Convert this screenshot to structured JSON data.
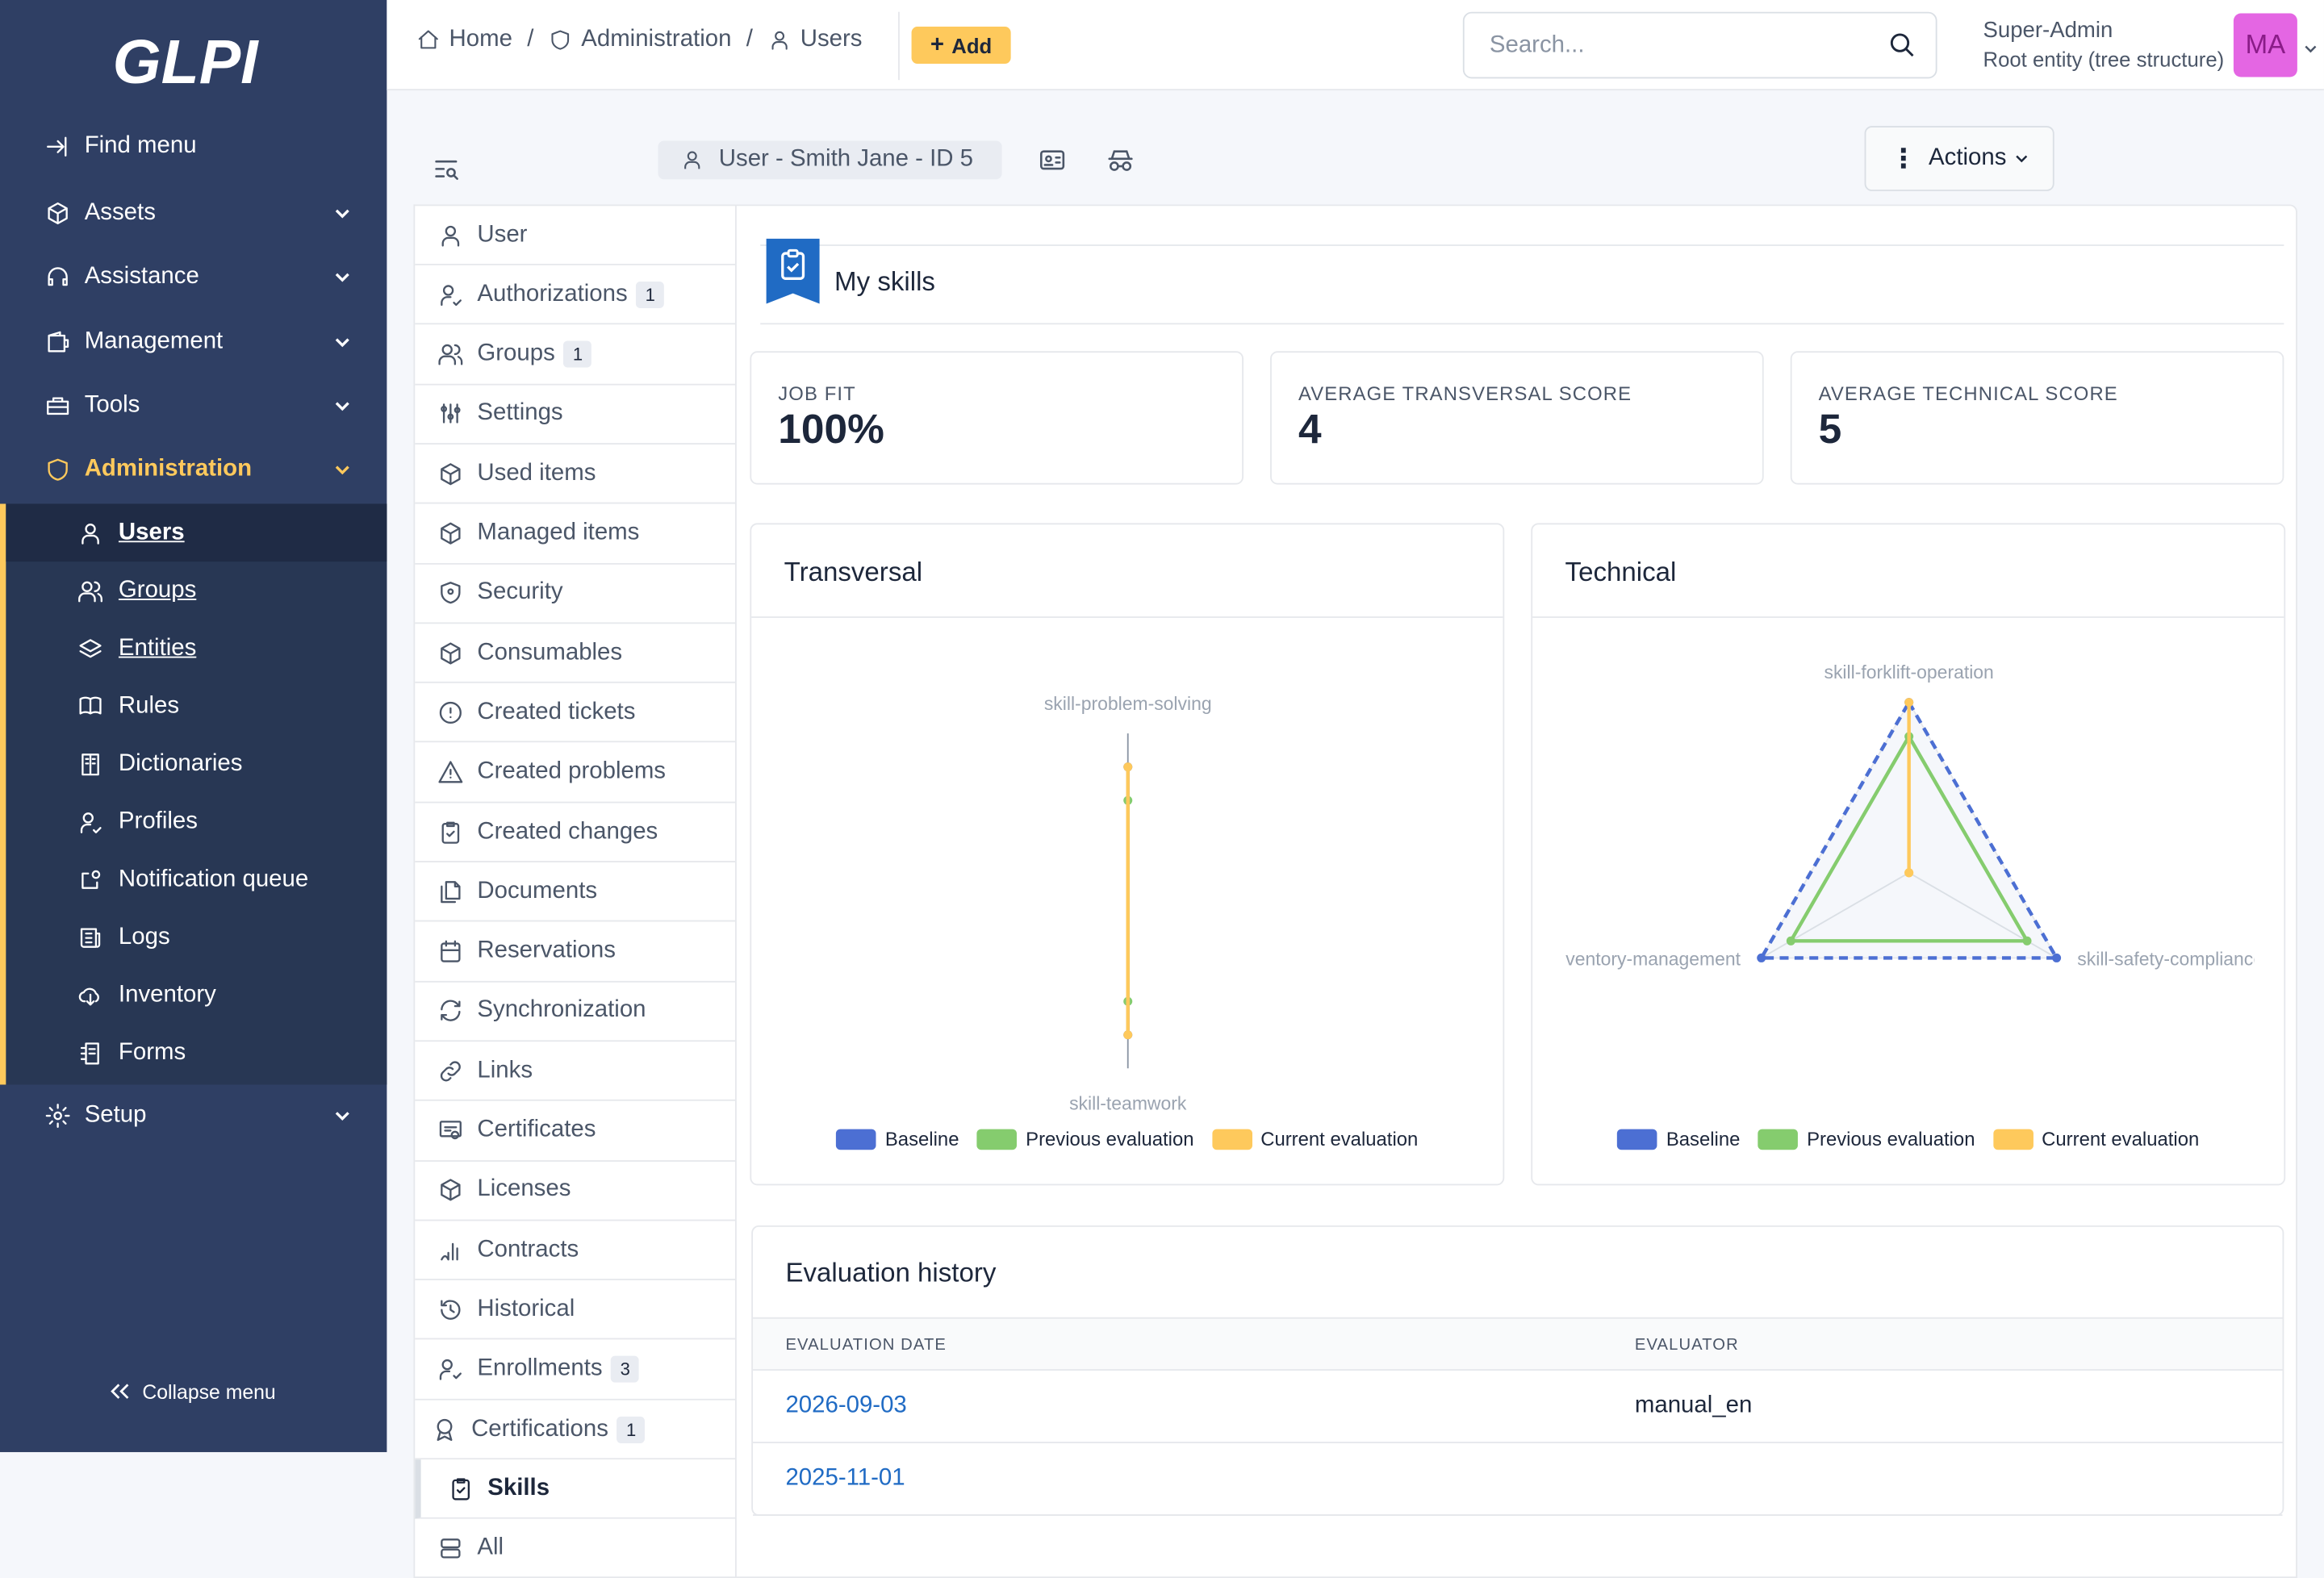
{
  "sidebar": {
    "logo": "GLPI",
    "find_menu": "Find menu",
    "items": [
      {
        "label": "Assets"
      },
      {
        "label": "Assistance"
      },
      {
        "label": "Management"
      },
      {
        "label": "Tools"
      },
      {
        "label": "Administration"
      },
      {
        "label": "Setup"
      }
    ],
    "admin_sub": [
      {
        "label": "Users"
      },
      {
        "label": "Groups"
      },
      {
        "label": "Entities"
      },
      {
        "label": "Rules"
      },
      {
        "label": "Dictionaries"
      },
      {
        "label": "Profiles"
      },
      {
        "label": "Notification queue"
      },
      {
        "label": "Logs"
      },
      {
        "label": "Inventory"
      },
      {
        "label": "Forms"
      }
    ],
    "collapse": "Collapse menu"
  },
  "header": {
    "breadcrumbs": [
      "Home",
      "Administration",
      "Users"
    ],
    "add": "Add",
    "search_placeholder": "Search...",
    "user_name": "Super-Admin",
    "user_entity": "Root entity (tree structure)",
    "avatar": "MA"
  },
  "toolbar": {
    "item_title": "User -  Smith Jane - ID 5",
    "actions": "Actions"
  },
  "tabs": [
    {
      "label": "User",
      "badge": ""
    },
    {
      "label": "Authorizations",
      "badge": "1"
    },
    {
      "label": "Groups",
      "badge": "1"
    },
    {
      "label": "Settings",
      "badge": ""
    },
    {
      "label": "Used items",
      "badge": ""
    },
    {
      "label": "Managed items",
      "badge": ""
    },
    {
      "label": "Security",
      "badge": ""
    },
    {
      "label": "Consumables",
      "badge": ""
    },
    {
      "label": "Created tickets",
      "badge": ""
    },
    {
      "label": "Created problems",
      "badge": ""
    },
    {
      "label": "Created changes",
      "badge": ""
    },
    {
      "label": "Documents",
      "badge": ""
    },
    {
      "label": "Reservations",
      "badge": ""
    },
    {
      "label": "Synchronization",
      "badge": ""
    },
    {
      "label": "Links",
      "badge": ""
    },
    {
      "label": "Certificates",
      "badge": ""
    },
    {
      "label": "Licenses",
      "badge": ""
    },
    {
      "label": "Contracts",
      "badge": ""
    },
    {
      "label": "Historical",
      "badge": ""
    },
    {
      "label": "Enrollments",
      "badge": "3"
    },
    {
      "label": "Certifications",
      "badge": "1"
    },
    {
      "label": "Skills",
      "badge": ""
    },
    {
      "label": "All",
      "badge": ""
    }
  ],
  "skills": {
    "title": "My skills",
    "stats": [
      {
        "label": "Job fit",
        "value": "100%"
      },
      {
        "label": "Average transversal score",
        "value": "4"
      },
      {
        "label": "Average technical score",
        "value": "5"
      }
    ]
  },
  "legend": [
    "Baseline",
    "Previous evaluation",
    "Current evaluation"
  ],
  "colors": {
    "baseline": "#4c6fd3",
    "previous": "#85cc6e",
    "current": "#fec95c",
    "accent": "#fec95c",
    "sidebar": "#2f3f64"
  },
  "chart_data": [
    {
      "type": "radar",
      "title": "Transversal",
      "axes": [
        "skill-problem-solving",
        "skill-teamwork"
      ],
      "scale_max": 5,
      "series": [
        {
          "name": "Baseline",
          "values": [
            4,
            4
          ]
        },
        {
          "name": "Previous evaluation",
          "values": [
            3,
            3
          ]
        },
        {
          "name": "Current evaluation",
          "values": [
            4,
            4
          ]
        }
      ]
    },
    {
      "type": "radar",
      "title": "Technical",
      "axes": [
        "skill-forklift-operation",
        "skill-safety-compliance",
        "skill-inventory-management"
      ],
      "scale_max": 5,
      "series": [
        {
          "name": "Baseline",
          "values": [
            5,
            5,
            5
          ]
        },
        {
          "name": "Previous evaluation",
          "values": [
            4,
            4,
            4
          ]
        },
        {
          "name": "Current evaluation",
          "values": [
            5,
            0,
            0
          ]
        }
      ]
    }
  ],
  "history": {
    "title": "Evaluation history",
    "columns": [
      "Evaluation date",
      "Evaluator"
    ],
    "rows": [
      {
        "date": "2026-09-03",
        "evaluator": "manual_en"
      },
      {
        "date": "2025-11-01",
        "evaluator": ""
      }
    ]
  }
}
